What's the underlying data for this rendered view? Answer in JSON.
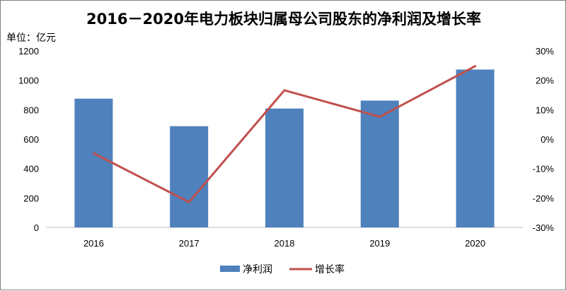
{
  "chart_data": {
    "type": "bar",
    "title": "2016－2020年电力板块归属母公司股东的净利润及增长率",
    "unit_label": "单位：亿元",
    "categories": [
      "2016",
      "2017",
      "2018",
      "2019",
      "2020"
    ],
    "series": [
      {
        "name": "净利润",
        "type": "bar",
        "axis": "left",
        "color": "#4f81bd",
        "values": [
          875,
          688,
          808,
          862,
          1073
        ]
      },
      {
        "name": "增长率",
        "type": "line",
        "axis": "right",
        "color": "#c0504d",
        "values": [
          -4.8,
          -21.4,
          16.6,
          7.6,
          24.8
        ]
      }
    ],
    "y_left": {
      "ylim": [
        0,
        1200
      ],
      "ticks": [
        "0",
        "200",
        "400",
        "600",
        "800",
        "1000",
        "1200"
      ]
    },
    "y_right": {
      "ylim": [
        -30,
        30
      ],
      "ticks": [
        "-30%",
        "-20%",
        "-10%",
        "0%",
        "10%",
        "20%",
        "30%"
      ]
    },
    "grid": false,
    "legend_position": "bottom"
  }
}
